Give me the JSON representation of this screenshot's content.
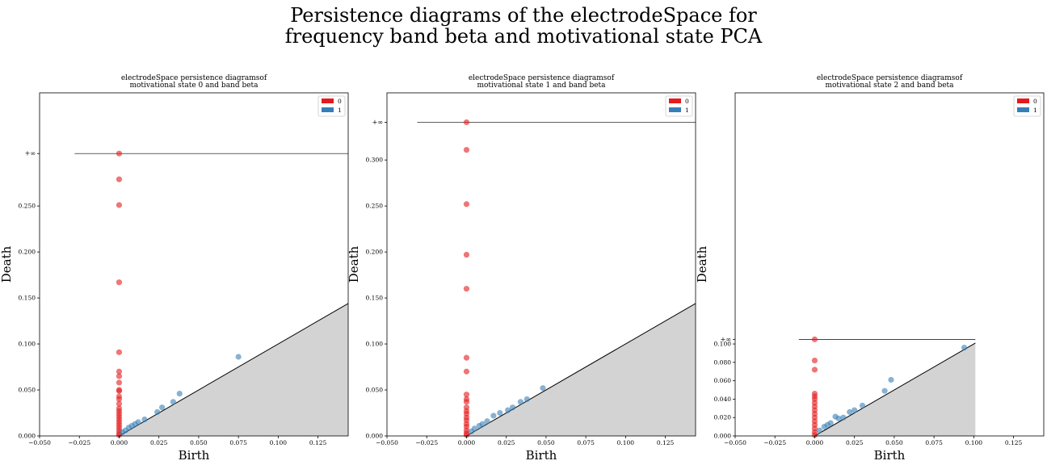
{
  "figure": {
    "title_line1": "Persistence diagrams of the electrodeSpace for",
    "title_line2": "frequency band beta and motivational state PCA"
  },
  "colors": {
    "dim0": "#e41a1c",
    "dim1": "#377eb8",
    "diagonal_fill": "#d3d3d3"
  },
  "chart_data": [
    {
      "type": "scatter",
      "title_line1": "electrodeSpace persistence diagramsof",
      "title_line2": "motivational state 0 and band  beta",
      "xlabel": "Birth",
      "ylabel": "Death",
      "xlim": [
        -0.05,
        0.144
      ],
      "ylim": [
        0,
        0.373
      ],
      "xticks": [
        "−0.050",
        "−0.025",
        "0.000",
        "0.025",
        "0.050",
        "0.075",
        "0.100",
        "0.125"
      ],
      "xtick_values": [
        -0.05,
        -0.025,
        0,
        0.025,
        0.05,
        0.075,
        0.1,
        0.125
      ],
      "yticks": [
        "0.000",
        "0.050",
        "0.100",
        "0.150",
        "0.200",
        "0.250"
      ],
      "ytick_values": [
        0,
        0.05,
        0.1,
        0.15,
        0.2,
        0.25
      ],
      "inf_label": "+∞",
      "inf_value": 0.307,
      "inf_line_x": [
        -0.028,
        0.144
      ],
      "legend": [
        "0",
        "1"
      ],
      "legend_position": "upper right",
      "series": [
        {
          "name": "0",
          "points": [
            [
              0,
              0.307
            ],
            [
              0,
              0.279
            ],
            [
              0,
              0.251
            ],
            [
              0,
              0.167
            ],
            [
              0,
              0.091
            ],
            [
              0,
              0.07
            ],
            [
              0,
              0.065
            ],
            [
              0,
              0.058
            ],
            [
              0,
              0.05
            ],
            [
              0,
              0.049
            ],
            [
              0,
              0.043
            ],
            [
              0,
              0.04
            ],
            [
              0,
              0.035
            ],
            [
              0,
              0.03
            ],
            [
              0,
              0.027
            ],
            [
              0,
              0.024
            ],
            [
              0,
              0.021
            ],
            [
              0,
              0.018
            ],
            [
              0,
              0.015
            ],
            [
              0,
              0.012
            ],
            [
              0,
              0.009
            ],
            [
              0,
              0.006
            ],
            [
              0,
              0.003
            ],
            [
              0,
              0.001
            ]
          ]
        },
        {
          "name": "1",
          "points": [
            [
              0.075,
              0.086
            ],
            [
              0.038,
              0.046
            ],
            [
              0.034,
              0.037
            ],
            [
              0.027,
              0.031
            ],
            [
              0.024,
              0.026
            ],
            [
              0.016,
              0.018
            ],
            [
              0.012,
              0.015
            ],
            [
              0.01,
              0.013
            ],
            [
              0.008,
              0.011
            ],
            [
              0.006,
              0.009
            ],
            [
              0.004,
              0.006
            ],
            [
              0.002,
              0.004
            ]
          ]
        }
      ]
    },
    {
      "type": "scatter",
      "title_line1": "electrodeSpace persistence diagramsof",
      "title_line2": "motivational state 1 and band  beta",
      "xlabel": "Birth",
      "ylabel": "Death",
      "xlim": [
        -0.05,
        0.144
      ],
      "ylim": [
        0,
        0.373
      ],
      "xticks": [
        "−0.050",
        "−0.025",
        "0.000",
        "0.025",
        "0.050",
        "0.075",
        "0.100",
        "0.125"
      ],
      "xtick_values": [
        -0.05,
        -0.025,
        0,
        0.025,
        0.05,
        0.075,
        0.1,
        0.125
      ],
      "yticks": [
        "0.000",
        "0.050",
        "0.100",
        "0.150",
        "0.200",
        "0.250",
        "0.300"
      ],
      "ytick_values": [
        0,
        0.05,
        0.1,
        0.15,
        0.2,
        0.25,
        0.3
      ],
      "inf_label": "+∞",
      "inf_value": 0.341,
      "inf_line_x": [
        -0.031,
        0.144
      ],
      "legend": [
        "0",
        "1"
      ],
      "legend_position": "upper right",
      "series": [
        {
          "name": "0",
          "points": [
            [
              0,
              0.341
            ],
            [
              0,
              0.311
            ],
            [
              0,
              0.252
            ],
            [
              0,
              0.197
            ],
            [
              0,
              0.16
            ],
            [
              0,
              0.085
            ],
            [
              0,
              0.07
            ],
            [
              0,
              0.045
            ],
            [
              0,
              0.04
            ],
            [
              0,
              0.037
            ],
            [
              0,
              0.031
            ],
            [
              0,
              0.027
            ],
            [
              0,
              0.024
            ],
            [
              0,
              0.02
            ],
            [
              0,
              0.017
            ],
            [
              0,
              0.013
            ],
            [
              0,
              0.01
            ],
            [
              0,
              0.006
            ],
            [
              0,
              0.003
            ],
            [
              0,
              0.001
            ]
          ]
        },
        {
          "name": "1",
          "points": [
            [
              0.048,
              0.052
            ],
            [
              0.038,
              0.04
            ],
            [
              0.034,
              0.037
            ],
            [
              0.029,
              0.031
            ],
            [
              0.026,
              0.028
            ],
            [
              0.021,
              0.025
            ],
            [
              0.017,
              0.022
            ],
            [
              0.013,
              0.016
            ],
            [
              0.01,
              0.013
            ],
            [
              0.008,
              0.011
            ],
            [
              0.005,
              0.008
            ],
            [
              0.003,
              0.005
            ]
          ]
        }
      ]
    },
    {
      "type": "scatter",
      "title_line1": "electrodeSpace persistence diagramsof",
      "title_line2": "motivational state 2 and band  beta",
      "xlabel": "Birth",
      "ylabel": "Death",
      "xlim": [
        -0.05,
        0.144
      ],
      "ylim": [
        0,
        0.373
      ],
      "xticks": [
        "−0.050",
        "−0.025",
        "0.000",
        "0.025",
        "0.050",
        "0.075",
        "0.100",
        "0.125"
      ],
      "xtick_values": [
        -0.05,
        -0.025,
        0,
        0.025,
        0.05,
        0.075,
        0.1,
        0.125
      ],
      "yticks": [
        "0.000",
        "0.020",
        "0.040",
        "0.060",
        "0.080",
        "0.100"
      ],
      "ytick_values": [
        0,
        0.02,
        0.04,
        0.06,
        0.08,
        0.1
      ],
      "inf_label": "+∞",
      "inf_value": 0.105,
      "inf_line_x": [
        -0.01,
        0.101
      ],
      "diagonal_max": 0.101,
      "legend": [
        "0",
        "1"
      ],
      "legend_position": "upper right",
      "series": [
        {
          "name": "0",
          "points": [
            [
              0,
              0.105
            ],
            [
              0,
              0.082
            ],
            [
              0,
              0.072
            ],
            [
              0,
              0.046
            ],
            [
              0,
              0.043
            ],
            [
              0,
              0.04
            ],
            [
              0,
              0.036
            ],
            [
              0,
              0.032
            ],
            [
              0,
              0.028
            ],
            [
              0,
              0.024
            ],
            [
              0,
              0.02
            ],
            [
              0,
              0.016
            ],
            [
              0,
              0.012
            ],
            [
              0,
              0.008
            ],
            [
              0,
              0.004
            ],
            [
              0,
              0.001
            ]
          ]
        },
        {
          "name": "1",
          "points": [
            [
              0.094,
              0.096
            ],
            [
              0.048,
              0.061
            ],
            [
              0.044,
              0.049
            ],
            [
              0.03,
              0.033
            ],
            [
              0.025,
              0.028
            ],
            [
              0.022,
              0.026
            ],
            [
              0.018,
              0.02
            ],
            [
              0.015,
              0.019
            ],
            [
              0.013,
              0.021
            ],
            [
              0.01,
              0.014
            ],
            [
              0.008,
              0.012
            ],
            [
              0.006,
              0.01
            ],
            [
              0.003,
              0.006
            ]
          ]
        }
      ]
    }
  ]
}
